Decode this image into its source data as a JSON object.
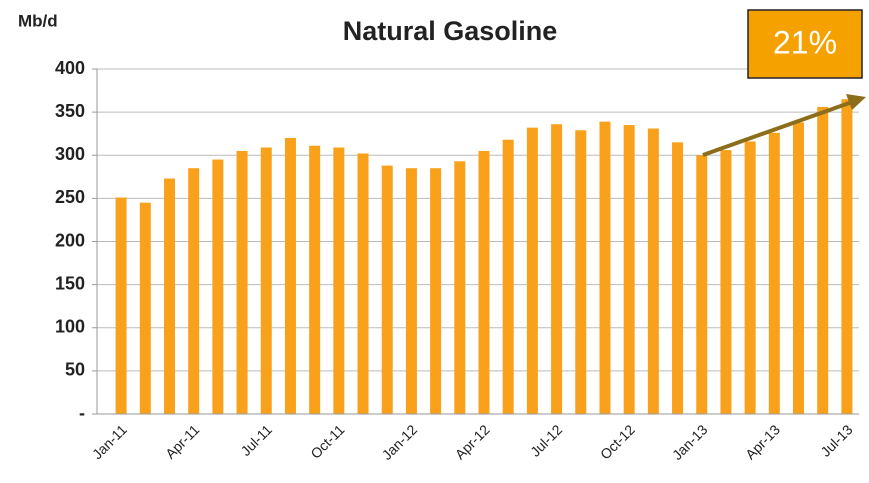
{
  "chart_data": {
    "type": "bar",
    "title": "Natural Gasoline",
    "y_axis_label": "Mb/d",
    "annotation": "21%",
    "categories": [
      "Jan-11",
      null,
      null,
      "Apr-11",
      null,
      null,
      "Jul-11",
      null,
      null,
      "Oct-11",
      null,
      null,
      "Jan-12",
      null,
      null,
      "Apr-12",
      null,
      null,
      "Jul-12",
      null,
      null,
      "Oct-12",
      null,
      null,
      "Jan-13",
      null,
      null,
      "Apr-13",
      null,
      null,
      "Jul-13"
    ],
    "values": [
      251,
      245,
      273,
      285,
      295,
      305,
      309,
      320,
      311,
      309,
      302,
      288,
      285,
      285,
      293,
      305,
      318,
      332,
      336,
      329,
      339,
      335,
      331,
      315,
      300,
      306,
      316,
      326,
      338,
      356,
      365
    ],
    "color": "#f9a11b",
    "ylim": [
      0,
      400
    ],
    "yticks": [
      {
        "value": 0,
        "label": "-"
      },
      50,
      100,
      150,
      200,
      250,
      300,
      350,
      400
    ],
    "grid": true
  }
}
